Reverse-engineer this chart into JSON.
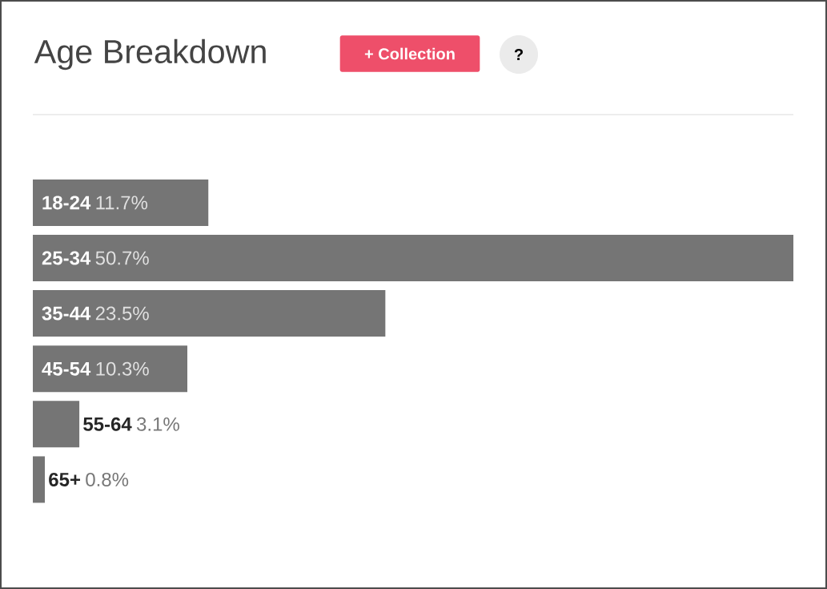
{
  "chart_data": {
    "type": "bar",
    "orientation": "horizontal",
    "title": "Age Breakdown",
    "categories": [
      "18-24",
      "25-34",
      "35-44",
      "45-54",
      "55-64",
      "65+"
    ],
    "values": [
      11.7,
      50.7,
      23.5,
      10.3,
      3.1,
      0.8
    ],
    "value_labels": [
      "11.7%",
      "50.7%",
      "23.5%",
      "10.3%",
      "3.1%",
      "0.8%"
    ],
    "color": "#757575",
    "annotations": [
      "+ Collection",
      "?"
    ]
  }
}
